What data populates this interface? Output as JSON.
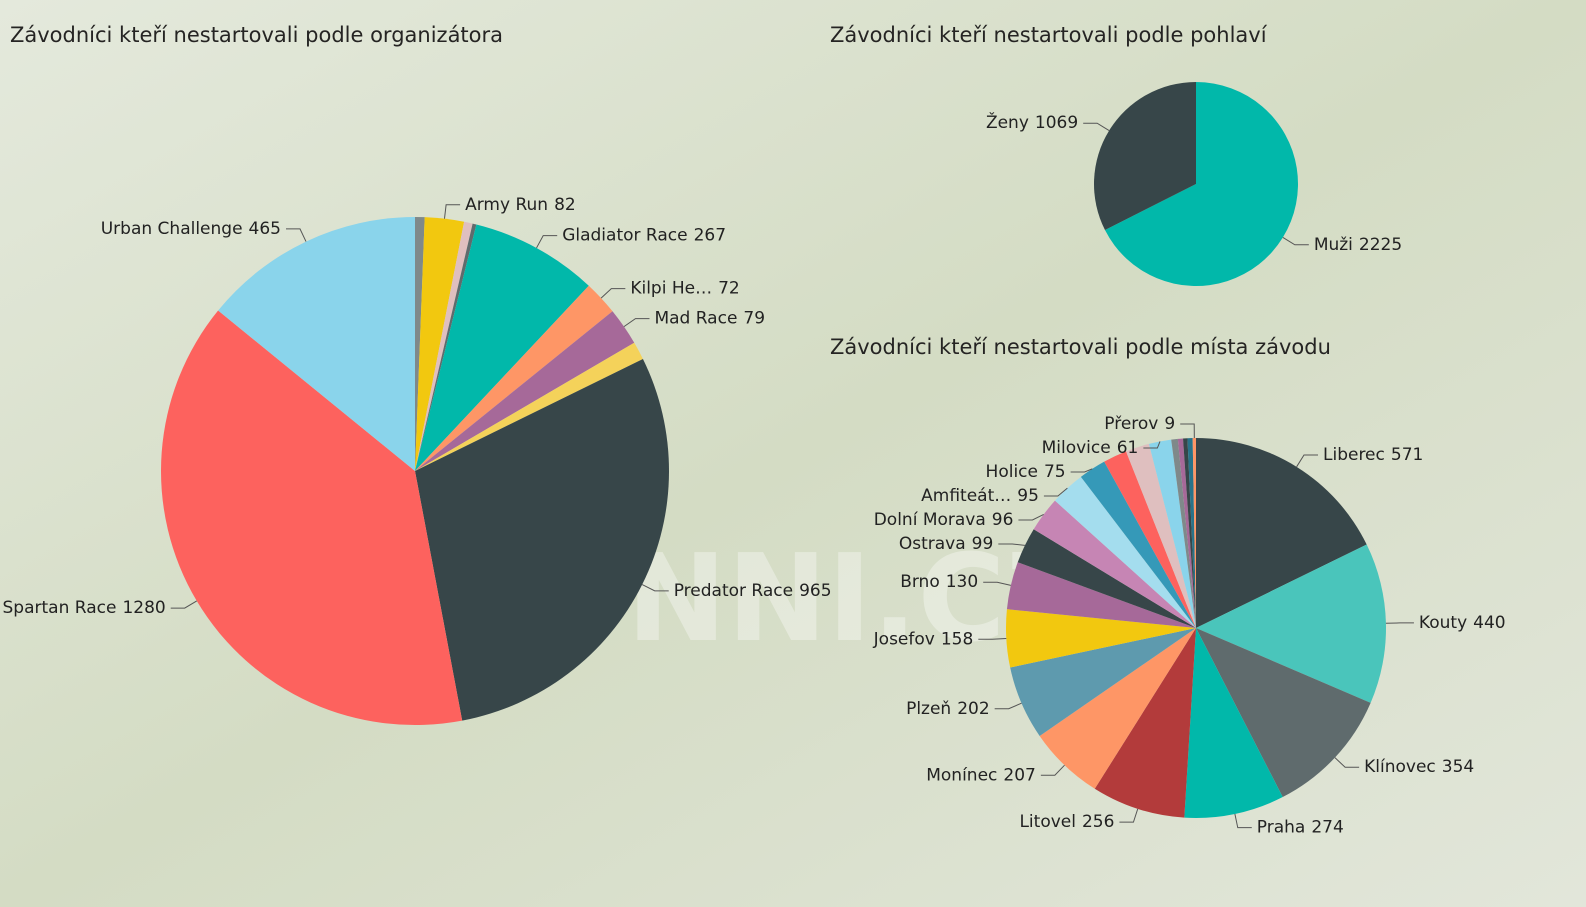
{
  "watermark": "RONNI.CZ",
  "chart_data": [
    {
      "type": "pie",
      "title": "Závodníci kteří nestartovali podle organizátora",
      "categories": [
        null,
        "Army Run",
        null,
        null,
        "Gladiator Race",
        "Kilpi He…",
        "Mad Race",
        null,
        "Predator Race",
        "Spartan Race",
        "Urban Challenge"
      ],
      "values": [
        20,
        82,
        18,
        8,
        267,
        72,
        79,
        38,
        965,
        1280,
        465
      ],
      "colors": [
        "#7f898a",
        "#f2c80f",
        "#dfbfbf",
        "#5f6b6d",
        "#01b8aa",
        "#fe9666",
        "#a66999",
        "#f4d25a",
        "#374649",
        "#fd625e",
        "#8ad4eb"
      ]
    },
    {
      "type": "pie",
      "title": "Závodníci kteří nestartovali podle pohlaví",
      "categories": [
        "Muži",
        "Ženy"
      ],
      "values": [
        2225,
        1069
      ],
      "colors": [
        "#01b8aa",
        "#374649"
      ]
    },
    {
      "type": "pie",
      "title": "Závodníci kteří nestartovali podle místa závodu",
      "categories": [
        "Liberec",
        "Kouty",
        "Klínovec",
        "Praha",
        "Litovel",
        "Monínec",
        "Plzeň",
        "Josefov",
        "Brno",
        "Ostrava",
        "Dolní Morava",
        "Amfiteát…",
        "Holice",
        null,
        null,
        "Milovice",
        null,
        null,
        null,
        null,
        "Přerov"
      ],
      "values": [
        571,
        440,
        354,
        274,
        256,
        207,
        202,
        158,
        130,
        99,
        96,
        95,
        75,
        65,
        65,
        61,
        18,
        14,
        12,
        14,
        9
      ],
      "colors": [
        "#374649",
        "#4ac5bb",
        "#5f6b6d",
        "#01b8aa",
        "#b33b3b",
        "#fe9666",
        "#5e9aae",
        "#f2c80f",
        "#a66999",
        "#374649",
        "#c685b4",
        "#a4ddee",
        "#3599b8",
        "#fd625e",
        "#dfbfbf",
        "#8ad4eb",
        "#7f898a",
        "#a66999",
        "#374649",
        "#28738a",
        "#fe9666"
      ]
    }
  ]
}
